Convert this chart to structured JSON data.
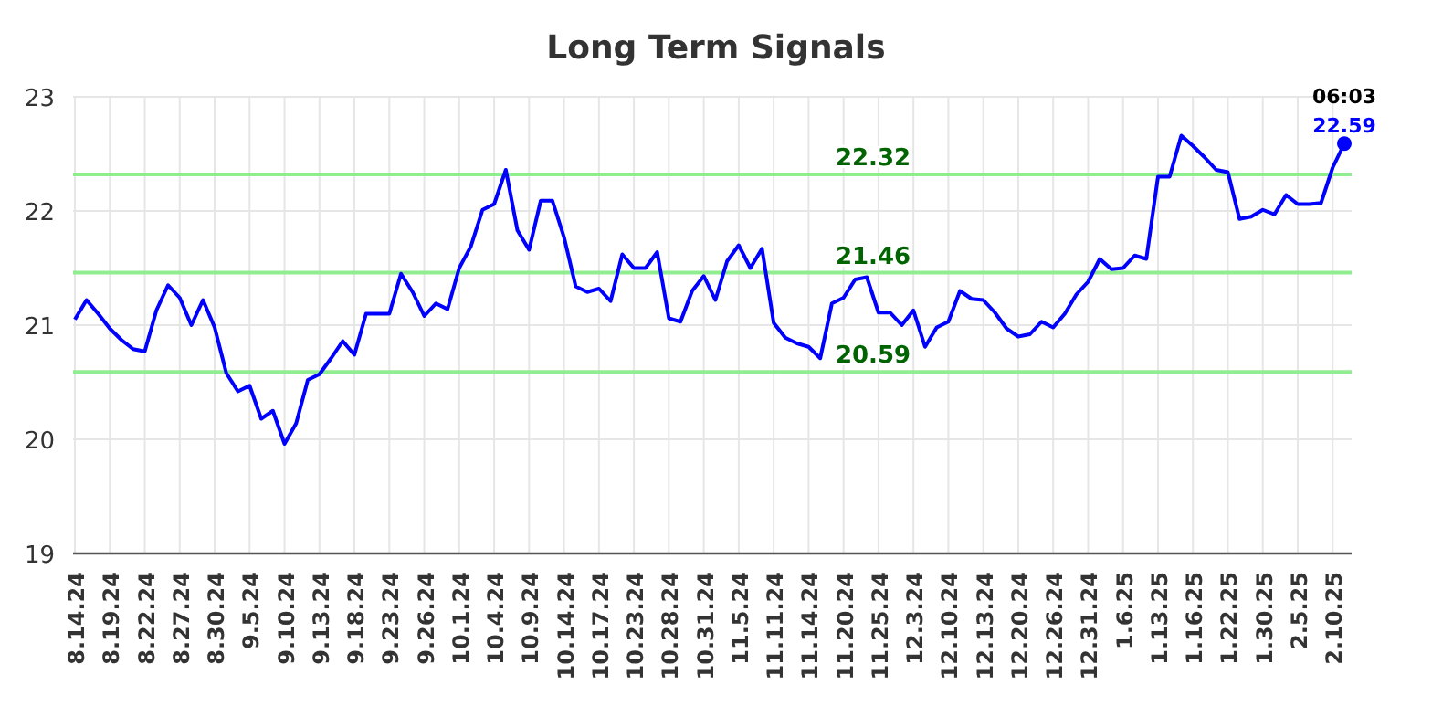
{
  "chart_data": {
    "type": "line",
    "title": "Long Term Signals",
    "categories": [
      "8.14.24",
      null,
      null,
      "8.19.24",
      null,
      null,
      "8.22.24",
      null,
      null,
      "8.27.24",
      null,
      null,
      "8.30.24",
      null,
      null,
      "9.5.24",
      null,
      null,
      "9.10.24",
      null,
      null,
      "9.13.24",
      null,
      null,
      "9.18.24",
      null,
      null,
      "9.23.24",
      null,
      null,
      "9.26.24",
      null,
      null,
      "10.1.24",
      null,
      null,
      "10.4.24",
      null,
      null,
      "10.9.24",
      null,
      null,
      "10.14.24",
      null,
      null,
      "10.17.24",
      null,
      null,
      "10.23.24",
      null,
      null,
      "10.28.24",
      null,
      null,
      "10.31.24",
      null,
      null,
      "11.5.24",
      null,
      null,
      "11.11.24",
      null,
      null,
      "11.14.24",
      null,
      null,
      "11.20.24",
      null,
      null,
      "11.25.24",
      null,
      null,
      "12.3.24",
      null,
      null,
      "12.10.24",
      null,
      null,
      "12.13.24",
      null,
      null,
      "12.20.24",
      null,
      null,
      "12.26.24",
      null,
      null,
      "12.31.24",
      null,
      null,
      "1.6.25",
      null,
      null,
      "1.13.25",
      null,
      null,
      "1.16.25",
      null,
      null,
      "1.22.25",
      null,
      null,
      "1.30.25",
      null,
      null,
      "2.5.25",
      null,
      null,
      "2.10.25",
      null
    ],
    "series": [
      {
        "color": "#0000ff",
        "values": [
          21.05,
          21.22,
          21.1,
          20.97,
          20.87,
          20.79,
          20.77,
          21.13,
          21.35,
          21.24,
          21.0,
          21.22,
          20.98,
          20.58,
          20.42,
          20.47,
          20.18,
          20.25,
          19.96,
          20.14,
          20.52,
          20.57,
          20.71,
          20.86,
          20.74,
          21.1,
          21.1,
          21.1,
          21.45,
          21.29,
          21.08,
          21.19,
          21.14,
          21.5,
          21.69,
          22.01,
          22.06,
          22.36,
          21.83,
          21.66,
          22.09,
          22.09,
          21.77,
          21.34,
          21.29,
          21.32,
          21.21,
          21.62,
          21.5,
          21.5,
          21.64,
          21.06,
          21.03,
          21.3,
          21.43,
          21.22,
          21.56,
          21.7,
          21.5,
          21.67,
          21.02,
          20.89,
          20.84,
          20.81,
          20.71,
          21.19,
          21.24,
          21.4,
          21.42,
          21.11,
          21.11,
          21.0,
          21.13,
          20.81,
          20.98,
          21.03,
          21.3,
          21.23,
          21.22,
          21.11,
          20.97,
          20.9,
          20.92,
          21.03,
          20.98,
          21.1,
          21.27,
          21.38,
          21.58,
          21.49,
          21.5,
          21.61,
          21.58,
          22.3,
          22.3,
          22.66,
          22.57,
          22.47,
          22.36,
          22.34,
          21.93,
          21.95,
          22.01,
          21.97,
          22.14,
          22.06,
          22.06,
          22.07,
          22.38,
          22.59
        ],
        "value_labels": [
          null,
          null,
          null,
          null,
          null,
          null,
          null,
          null,
          null,
          null,
          null,
          null,
          null,
          null,
          null,
          null,
          null,
          null,
          null,
          null,
          null,
          null,
          null,
          null,
          null,
          null,
          null,
          null,
          null,
          null,
          null,
          null,
          null,
          null,
          null,
          null,
          null,
          null,
          null,
          null,
          null,
          null,
          null,
          null,
          null,
          null,
          null,
          null,
          null,
          null,
          null,
          null,
          null,
          null,
          null,
          null,
          null,
          null,
          null,
          null,
          null,
          null,
          null,
          null,
          null,
          null,
          null,
          null,
          null,
          null,
          null,
          null,
          null,
          null,
          null,
          null,
          null,
          null,
          null,
          null,
          null,
          null,
          null,
          null,
          null,
          null,
          null,
          null,
          null,
          null,
          null,
          null,
          null,
          null,
          null,
          null,
          null,
          null,
          null,
          null,
          null,
          null,
          null,
          null,
          null,
          null,
          null,
          null,
          null,
          "22.59"
        ]
      }
    ],
    "ylim": [
      19,
      23
    ],
    "yticks": [
      19,
      20,
      21,
      22,
      23
    ],
    "grid": true,
    "marker": "none",
    "line_style": "solid",
    "ref_lines": [
      {
        "axis": "y",
        "value": 22.32,
        "label": "22.32",
        "color": "#90ee90"
      },
      {
        "axis": "y",
        "value": 21.46,
        "label": "21.46",
        "color": "#90ee90"
      },
      {
        "axis": "y",
        "value": 20.59,
        "label": "20.59",
        "color": "#90ee90"
      }
    ],
    "annotations": [
      {
        "text": "06:03",
        "y": 22.59
      }
    ]
  }
}
